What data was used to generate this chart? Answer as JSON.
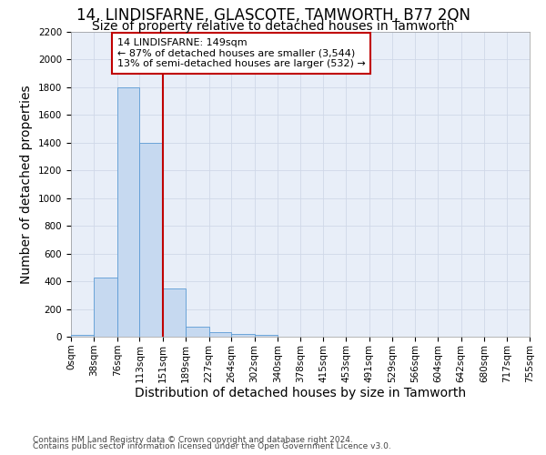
{
  "title": "14, LINDISFARNE, GLASCOTE, TAMWORTH, B77 2QN",
  "subtitle": "Size of property relative to detached houses in Tamworth",
  "xlabel": "Distribution of detached houses by size in Tamworth",
  "ylabel": "Number of detached properties",
  "footer_line1": "Contains HM Land Registry data © Crown copyright and database right 2024.",
  "footer_line2": "Contains public sector information licensed under the Open Government Licence v3.0.",
  "property_label": "14 LINDISFARNE: 149sqm",
  "annotation_line2": "← 87% of detached houses are smaller (3,544)",
  "annotation_line3": "13% of semi-detached houses are larger (532) →",
  "bin_edges": [
    0,
    38,
    76,
    113,
    151,
    189,
    227,
    264,
    302,
    340,
    378,
    415,
    453,
    491,
    529,
    566,
    604,
    642,
    680,
    717,
    755
  ],
  "bar_heights": [
    15,
    425,
    1800,
    1400,
    350,
    75,
    30,
    20,
    15,
    0,
    0,
    0,
    0,
    0,
    0,
    0,
    0,
    0,
    0,
    0
  ],
  "bar_color": "#c6d9f0",
  "bar_edgecolor": "#5b9bd5",
  "vline_color": "#c00000",
  "vline_x": 151,
  "ylim": [
    0,
    2200
  ],
  "yticks": [
    0,
    200,
    400,
    600,
    800,
    1000,
    1200,
    1400,
    1600,
    1800,
    2000,
    2200
  ],
  "grid_color": "#d0d8e8",
  "annotation_box_edgecolor": "#c00000",
  "bg_color": "#e8eef8",
  "title_fontsize": 12,
  "subtitle_fontsize": 10,
  "axis_label_fontsize": 10,
  "tick_fontsize": 7.5,
  "footer_fontsize": 6.5
}
